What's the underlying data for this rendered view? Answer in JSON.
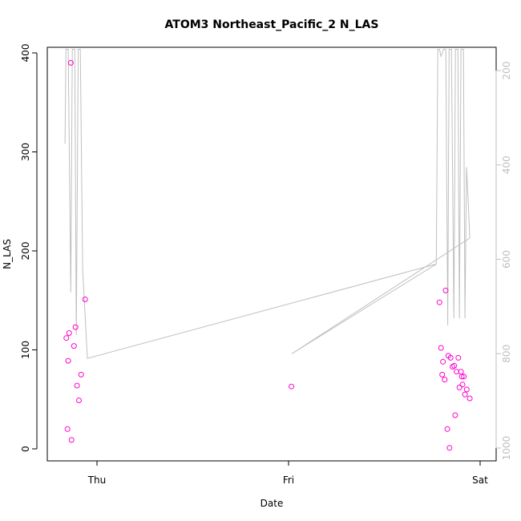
{
  "chart_data": {
    "type": "scatter",
    "title": "ATOM3 Northeast_Pacific_2 N_LAS",
    "xlabel": "Date",
    "ylabel": "N_LAS",
    "x_ticks": [
      "Thu",
      "Fri",
      "Sat"
    ],
    "x_tick_days": [
      1,
      2,
      3
    ],
    "xlim_days": [
      0.8,
      3.0
    ],
    "ylim": [
      0,
      400
    ],
    "y_ticks": [
      0,
      100,
      200,
      300,
      400
    ],
    "y2_ticks": [
      200,
      400,
      600,
      800,
      1000
    ],
    "y2_range_at_top_and_bottom": [
      155,
      1000
    ],
    "grid": false,
    "points_color": "#ff00cc",
    "profile_color": "#bfbfbf",
    "points": [
      {
        "day": 0.846,
        "y": 20
      },
      {
        "day": 0.84,
        "y": 112
      },
      {
        "day": 0.85,
        "y": 89
      },
      {
        "day": 0.855,
        "y": 117
      },
      {
        "day": 0.863,
        "y": 390
      },
      {
        "day": 0.867,
        "y": 9
      },
      {
        "day": 0.88,
        "y": 104
      },
      {
        "day": 0.888,
        "y": 123
      },
      {
        "day": 0.896,
        "y": 64
      },
      {
        "day": 0.906,
        "y": 49
      },
      {
        "day": 0.917,
        "y": 75
      },
      {
        "day": 0.938,
        "y": 151
      },
      {
        "day": 2.015,
        "y": 63
      },
      {
        "day": 2.788,
        "y": 148
      },
      {
        "day": 2.796,
        "y": 102
      },
      {
        "day": 2.802,
        "y": 75
      },
      {
        "day": 2.806,
        "y": 88
      },
      {
        "day": 2.815,
        "y": 70
      },
      {
        "day": 2.82,
        "y": 160
      },
      {
        "day": 2.829,
        "y": 20
      },
      {
        "day": 2.834,
        "y": 94
      },
      {
        "day": 2.84,
        "y": 1
      },
      {
        "day": 2.846,
        "y": 92
      },
      {
        "day": 2.856,
        "y": 83
      },
      {
        "day": 2.865,
        "y": 84
      },
      {
        "day": 2.87,
        "y": 34
      },
      {
        "day": 2.877,
        "y": 78
      },
      {
        "day": 2.886,
        "y": 92
      },
      {
        "day": 2.892,
        "y": 62
      },
      {
        "day": 2.9,
        "y": 78
      },
      {
        "day": 2.904,
        "y": 73
      },
      {
        "day": 2.908,
        "y": 65
      },
      {
        "day": 2.915,
        "y": 73
      },
      {
        "day": 2.921,
        "y": 55
      },
      {
        "day": 2.93,
        "y": 60
      },
      {
        "day": 2.946,
        "y": 51
      }
    ],
    "profile_line_y2": [
      {
        "day": 0.833,
        "y2": 355
      },
      {
        "day": 0.838,
        "y2": 155
      },
      {
        "day": 0.85,
        "y2": 155
      },
      {
        "day": 0.863,
        "y2": 670
      },
      {
        "day": 0.871,
        "y2": 155
      },
      {
        "day": 0.884,
        "y2": 155
      },
      {
        "day": 0.892,
        "y2": 760
      },
      {
        "day": 0.902,
        "y2": 155
      },
      {
        "day": 0.913,
        "y2": 155
      },
      {
        "day": 0.925,
        "y2": 620
      },
      {
        "day": 0.95,
        "y2": 810
      },
      {
        "day": 2.771,
        "y2": 610
      },
      {
        "day": 2.779,
        "y2": 155
      },
      {
        "day": 2.788,
        "y2": 155
      },
      {
        "day": 2.796,
        "y2": 170
      },
      {
        "day": 2.809,
        "y2": 155
      },
      {
        "day": 2.821,
        "y2": 155
      },
      {
        "day": 2.831,
        "y2": 740
      },
      {
        "day": 2.838,
        "y2": 155
      },
      {
        "day": 2.85,
        "y2": 155
      },
      {
        "day": 2.863,
        "y2": 725
      },
      {
        "day": 2.871,
        "y2": 155
      },
      {
        "day": 2.884,
        "y2": 155
      },
      {
        "day": 2.892,
        "y2": 725
      },
      {
        "day": 2.9,
        "y2": 155
      },
      {
        "day": 2.913,
        "y2": 155
      },
      {
        "day": 2.921,
        "y2": 725
      },
      {
        "day": 2.929,
        "y2": 405
      },
      {
        "day": 2.938,
        "y2": 480
      },
      {
        "day": 2.946,
        "y2": 555
      },
      {
        "day": 2.017,
        "y2": 800
      },
      {
        "day": 2.771,
        "y2": 610
      }
    ]
  }
}
